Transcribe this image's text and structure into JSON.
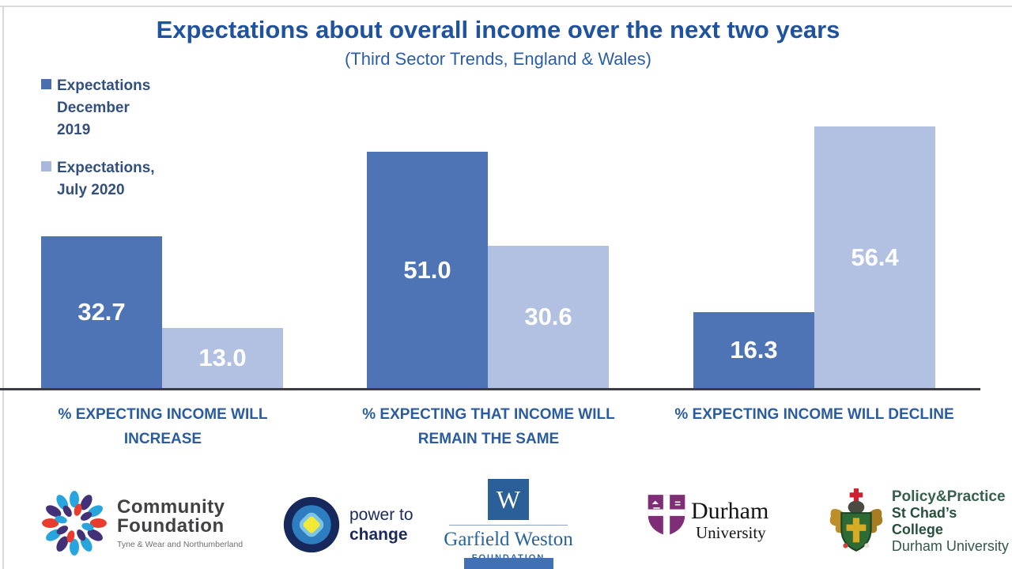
{
  "slide": {
    "title": "Expectations about overall income over the next two years",
    "subtitle": "(Third Sector Trends, England & Wales)"
  },
  "chart_data": {
    "type": "bar",
    "title": "Expectations about overall income over the next two years",
    "subtitle": "(Third Sector Trends, England & Wales)",
    "categories": [
      "% EXPECTING INCOME WILL INCREASE",
      "% EXPECTING THAT INCOME WILL REMAIN THE SAME",
      "% EXPECTING INCOME WILL DECLINE"
    ],
    "series": [
      {
        "name": "Expectations December 2019",
        "color": "#4e74b6",
        "values": [
          32.7,
          51.0,
          16.3
        ]
      },
      {
        "name": "Expectations, July 2020",
        "color": "#b2c0e2",
        "values": [
          13.0,
          30.6,
          56.4
        ]
      }
    ],
    "value_label_color": "#ffffff",
    "ylim": [
      0,
      60
    ],
    "grid": false,
    "legend_position": "top-left",
    "xlabel": "",
    "ylabel": ""
  },
  "legend": {
    "items": [
      {
        "text": "Expectations\nDecember\n2019",
        "color": "#4a6fad"
      },
      {
        "text": "Expectations,\nJuly 2020",
        "color": "#a9b7db"
      }
    ]
  },
  "logos": [
    {
      "name": "Community Foundation",
      "line1": "Community",
      "line2": "Foundation",
      "tagline": "Tyne & Wear and Northumberland"
    },
    {
      "name": "Power to Change",
      "line1": "power to",
      "line2": "change"
    },
    {
      "name": "Garfield Weston Foundation",
      "monogram": "W",
      "line1": "Garfield Weston",
      "line2": "FOUNDATION"
    },
    {
      "name": "Durham University",
      "line1": "Durham",
      "line2": "University"
    },
    {
      "name": "St Chad's College",
      "line1": "Policy&Practice",
      "line2": "St Chad’s College",
      "line3": "Durham University"
    }
  ],
  "footer_bar": {
    "color": "#4170b4"
  }
}
